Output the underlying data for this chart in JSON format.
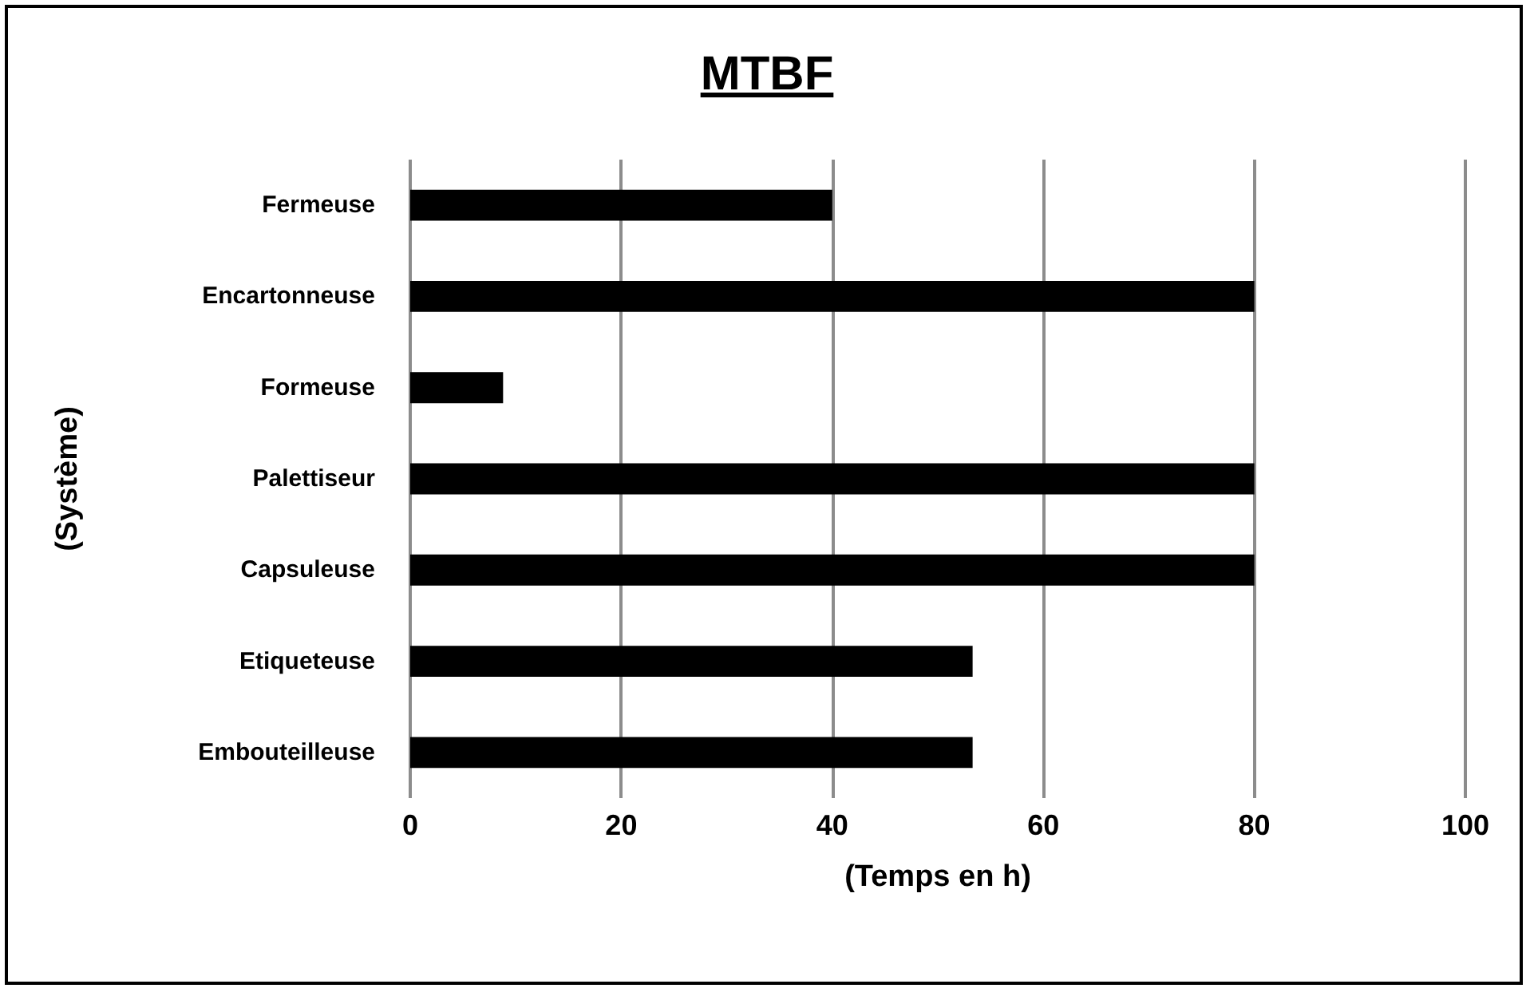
{
  "chart_data": {
    "type": "bar",
    "orientation": "horizontal",
    "title": "MTBF",
    "xlabel": "(Temps en h)",
    "ylabel": "(Système)",
    "categories": [
      "Fermeuse",
      "Encartonneuse",
      "Formeuse",
      "Palettiseur",
      "Capsuleuse",
      "Etiqueteuse",
      "Embouteilleuse"
    ],
    "values": [
      40,
      80,
      8.8,
      80,
      80,
      53.3,
      53.3
    ],
    "color": "#000000",
    "xlim": [
      0,
      100
    ],
    "xticks": [
      0,
      20,
      40,
      60,
      80,
      100
    ],
    "grid": "x"
  }
}
